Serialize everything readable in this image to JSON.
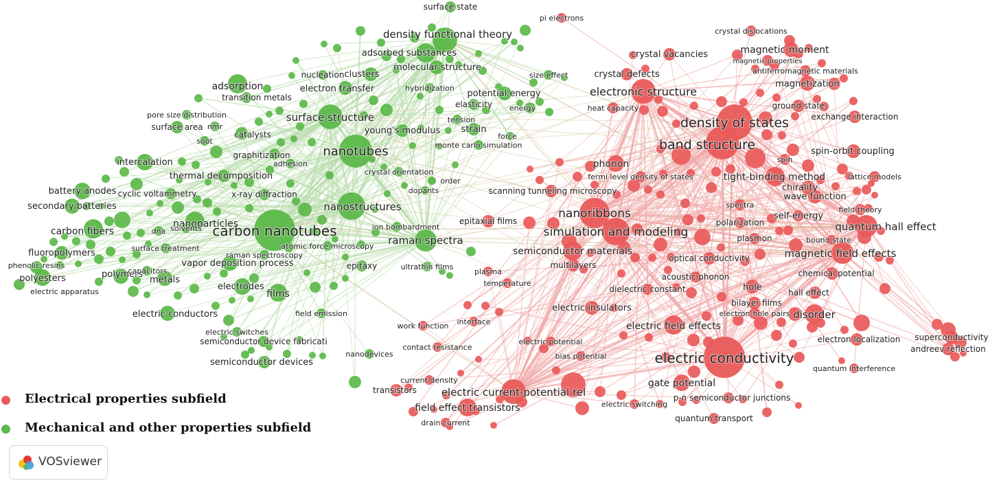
{
  "colors": {
    "electrical": "#e95a5a",
    "mechanical": "#5cb84a",
    "electrical_edge": "#f0aaaa",
    "mechanical_edge": "#b8ddac"
  },
  "legend": [
    {
      "label": "Electrical properties subfield",
      "color": "#e95a5a"
    },
    {
      "label": "Mechanical and other properties subfield",
      "color": "#5cb84a"
    }
  ],
  "brand": {
    "label": "VOSviewer",
    "icon": "vosviewer-logo-icon"
  },
  "nodes": [
    {
      "label": "carbon nanotubes",
      "c": "g",
      "w": 30,
      "lbl": 20
    },
    {
      "label": "nanotubes",
      "c": "g",
      "w": 24,
      "lbl": 18
    },
    {
      "label": "nanostructures",
      "c": "g",
      "w": 20,
      "lbl": 15
    },
    {
      "label": "surface structure",
      "c": "g",
      "w": 18,
      "lbl": 15
    },
    {
      "label": "density functional theory",
      "c": "g",
      "w": 18,
      "lbl": 15
    },
    {
      "label": "adsorbed substances",
      "c": "g",
      "w": 14,
      "lbl": 13
    },
    {
      "label": "raman spectra",
      "c": "g",
      "w": 16,
      "lbl": 15
    },
    {
      "label": "adsorption",
      "c": "g",
      "w": 14,
      "lbl": 14
    },
    {
      "label": "nanoparticles",
      "c": "g",
      "w": 14,
      "lbl": 14
    },
    {
      "label": "carbon fibers",
      "c": "g",
      "w": 14,
      "lbl": 14
    },
    {
      "label": "intercalation",
      "c": "g",
      "w": 12,
      "lbl": 13
    },
    {
      "label": "battery anodes",
      "c": "g",
      "w": 12,
      "lbl": 13
    },
    {
      "label": "secondary batteries",
      "c": "g",
      "w": 11,
      "lbl": 13
    },
    {
      "label": "fluoropolymers",
      "c": "g",
      "w": 10,
      "lbl": 13
    },
    {
      "label": "phenolic resins",
      "c": "g",
      "w": 9,
      "lbl": 11
    },
    {
      "label": "polyesters",
      "c": "g",
      "w": 12,
      "lbl": 13
    },
    {
      "label": "polymers",
      "c": "g",
      "w": 11,
      "lbl": 13
    },
    {
      "label": "electric apparatus",
      "c": "g",
      "w": 8,
      "lbl": 11
    },
    {
      "label": "metals",
      "c": "g",
      "w": 11,
      "lbl": 13
    },
    {
      "label": "films",
      "c": "g",
      "w": 13,
      "lbl": 14
    },
    {
      "label": "electrodes",
      "c": "g",
      "w": 12,
      "lbl": 13
    },
    {
      "label": "vapor deposition process",
      "c": "g",
      "w": 11,
      "lbl": 13
    },
    {
      "label": "electric conductors",
      "c": "g",
      "w": 11,
      "lbl": 13
    },
    {
      "label": "clusters",
      "c": "g",
      "w": 10,
      "lbl": 13
    },
    {
      "label": "molecular structure",
      "c": "g",
      "w": 10,
      "lbl": 13
    },
    {
      "label": "electron transfer",
      "c": "g",
      "w": 10,
      "lbl": 13
    },
    {
      "label": "potential energy",
      "c": "g",
      "w": 10,
      "lbl": 13
    },
    {
      "label": "young's modulus",
      "c": "g",
      "w": 9,
      "lbl": 13
    },
    {
      "label": "strain",
      "c": "g",
      "w": 9,
      "lbl": 13
    },
    {
      "label": "elasticity",
      "c": "g",
      "w": 8,
      "lbl": 12
    },
    {
      "label": "energy",
      "c": "g",
      "w": 8,
      "lbl": 11
    },
    {
      "label": "catalysts",
      "c": "g",
      "w": 9,
      "lbl": 12
    },
    {
      "label": "surface area",
      "c": "g",
      "w": 9,
      "lbl": 12
    },
    {
      "label": "thermal decomposition",
      "c": "g",
      "w": 9,
      "lbl": 13
    },
    {
      "label": "x-ray diffraction",
      "c": "g",
      "w": 8,
      "lbl": 12
    },
    {
      "label": "cyclic voltammetry",
      "c": "g",
      "w": 8,
      "lbl": 12
    },
    {
      "label": "graphitization",
      "c": "g",
      "w": 8,
      "lbl": 12
    },
    {
      "label": "transition metals",
      "c": "g",
      "w": 8,
      "lbl": 12
    },
    {
      "label": "pore size distribution",
      "c": "g",
      "w": 7,
      "lbl": 11
    },
    {
      "label": "nmr",
      "c": "g",
      "w": 7,
      "lbl": 11
    },
    {
      "label": "soot",
      "c": "g",
      "w": 7,
      "lbl": 11
    },
    {
      "label": "adhesion",
      "c": "g",
      "w": 7,
      "lbl": 11
    },
    {
      "label": "nucleation",
      "c": "g",
      "w": 7,
      "lbl": 12
    },
    {
      "label": "hybridization",
      "c": "g",
      "w": 7,
      "lbl": 11
    },
    {
      "label": "tension",
      "c": "g",
      "w": 7,
      "lbl": 11
    },
    {
      "label": "force",
      "c": "g",
      "w": 6,
      "lbl": 11
    },
    {
      "label": "monte carlo simulation",
      "c": "g",
      "w": 7,
      "lbl": 11
    },
    {
      "label": "crystal orientation",
      "c": "g",
      "w": 7,
      "lbl": 11
    },
    {
      "label": "order",
      "c": "g",
      "w": 6,
      "lbl": 11
    },
    {
      "label": "dopants",
      "c": "g",
      "w": 6,
      "lbl": 11
    },
    {
      "label": "ion bombardment",
      "c": "g",
      "w": 7,
      "lbl": 11
    },
    {
      "label": "atomic force microscopy",
      "c": "g",
      "w": 7,
      "lbl": 11
    },
    {
      "label": "raman spectroscopy",
      "c": "g",
      "w": 7,
      "lbl": 11
    },
    {
      "label": "epitaxy",
      "c": "g",
      "w": 8,
      "lbl": 12
    },
    {
      "label": "ultrathin films",
      "c": "g",
      "w": 7,
      "lbl": 11
    },
    {
      "label": "dna",
      "c": "g",
      "w": 7,
      "lbl": 11
    },
    {
      "label": "solvents",
      "c": "g",
      "w": 7,
      "lbl": 11
    },
    {
      "label": "surface treatment",
      "c": "g",
      "w": 7,
      "lbl": 11
    },
    {
      "label": "capacitors",
      "c": "g",
      "w": 7,
      "lbl": 11
    },
    {
      "label": "field emission",
      "c": "g",
      "w": 7,
      "lbl": 11
    },
    {
      "label": "electric switches",
      "c": "g",
      "w": 7,
      "lbl": 11
    },
    {
      "label": "semiconductor device fabricati",
      "c": "g",
      "w": 8,
      "lbl": 12
    },
    {
      "label": "semiconductor devices",
      "c": "g",
      "w": 9,
      "lbl": 13
    },
    {
      "label": "nanodevices",
      "c": "g",
      "w": 7,
      "lbl": 11
    },
    {
      "label": "surface state",
      "c": "g",
      "w": 8,
      "lbl": 12
    },
    {
      "label": "size effect",
      "c": "g",
      "w": 7,
      "lbl": 11
    },
    {
      "label": "density of states",
      "c": "r",
      "w": 26,
      "lbl": 19
    },
    {
      "label": "band structure",
      "c": "r",
      "w": 24,
      "lbl": 19
    },
    {
      "label": "electric conductivity",
      "c": "r",
      "w": 30,
      "lbl": 20
    },
    {
      "label": "nanoribbons",
      "c": "r",
      "w": 22,
      "lbl": 17
    },
    {
      "label": "simulation and modeling",
      "c": "r",
      "w": 20,
      "lbl": 17
    },
    {
      "label": "electronic structure",
      "c": "r",
      "w": 18,
      "lbl": 16
    },
    {
      "label": "electric current-potential rel",
      "c": "r",
      "w": 18,
      "lbl": 15
    },
    {
      "label": "quantum hall effect",
      "c": "r",
      "w": 16,
      "lbl": 15
    },
    {
      "label": "magnetic field effects",
      "c": "r",
      "w": 16,
      "lbl": 15
    },
    {
      "label": "tight-binding method",
      "c": "r",
      "w": 14,
      "lbl": 14
    },
    {
      "label": "semiconductor materials",
      "c": "r",
      "w": 14,
      "lbl": 14
    },
    {
      "label": "phonon",
      "c": "r",
      "w": 12,
      "lbl": 14
    },
    {
      "label": "electric field effects",
      "c": "r",
      "w": 14,
      "lbl": 14
    },
    {
      "label": "disorder",
      "c": "r",
      "w": 14,
      "lbl": 15
    },
    {
      "label": "field effect transistors",
      "c": "r",
      "w": 13,
      "lbl": 14
    },
    {
      "label": "gate potential",
      "c": "r",
      "w": 12,
      "lbl": 14
    },
    {
      "label": "magnetic moment",
      "c": "r",
      "w": 11,
      "lbl": 14
    },
    {
      "label": "magnetization",
      "c": "r",
      "w": 11,
      "lbl": 13
    },
    {
      "label": "spin-orbit coupling",
      "c": "r",
      "w": 10,
      "lbl": 13
    },
    {
      "label": "wave function",
      "c": "r",
      "w": 10,
      "lbl": 13
    },
    {
      "label": "chirality",
      "c": "r",
      "w": 10,
      "lbl": 13
    },
    {
      "label": "ground state",
      "c": "r",
      "w": 9,
      "lbl": 12
    },
    {
      "label": "exchange interaction",
      "c": "r",
      "w": 9,
      "lbl": 12
    },
    {
      "label": "crystal vacancies",
      "c": "r",
      "w": 9,
      "lbl": 13
    },
    {
      "label": "crystal defects",
      "c": "r",
      "w": 9,
      "lbl": 13
    },
    {
      "label": "crystal dislocations",
      "c": "r",
      "w": 8,
      "lbl": 11
    },
    {
      "label": "magnetic properties",
      "c": "r",
      "w": 8,
      "lbl": 10
    },
    {
      "label": "antiferromagnetic materials",
      "c": "r",
      "w": 8,
      "lbl": 11
    },
    {
      "label": "heat capacity",
      "c": "r",
      "w": 8,
      "lbl": 11
    },
    {
      "label": "spin",
      "c": "r",
      "w": 8,
      "lbl": 11
    },
    {
      "label": "lattice models",
      "c": "r",
      "w": 8,
      "lbl": 11
    },
    {
      "label": "fermi level density of states",
      "c": "r",
      "w": 8,
      "lbl": 11
    },
    {
      "label": "scanning tunneling microscopy",
      "c": "r",
      "w": 9,
      "lbl": 12
    },
    {
      "label": "field theory",
      "c": "r",
      "w": 8,
      "lbl": 11
    },
    {
      "label": "spectra",
      "c": "r",
      "w": 8,
      "lbl": 11
    },
    {
      "label": "polarization",
      "c": "r",
      "w": 8,
      "lbl": 12
    },
    {
      "label": "self-energy",
      "c": "r",
      "w": 8,
      "lbl": 13
    },
    {
      "label": "plasmon",
      "c": "r",
      "w": 8,
      "lbl": 12
    },
    {
      "label": "bound state",
      "c": "r",
      "w": 7,
      "lbl": 11
    },
    {
      "label": "epitaxial films",
      "c": "r",
      "w": 9,
      "lbl": 12
    },
    {
      "label": "multilayers",
      "c": "r",
      "w": 9,
      "lbl": 12
    },
    {
      "label": "optical conductivity",
      "c": "r",
      "w": 9,
      "lbl": 12
    },
    {
      "label": "acoustic phonon",
      "c": "r",
      "w": 8,
      "lbl": 12
    },
    {
      "label": "chemical potential",
      "c": "r",
      "w": 9,
      "lbl": 12
    },
    {
      "label": "dielectric constant",
      "c": "r",
      "w": 8,
      "lbl": 12
    },
    {
      "label": "hole",
      "c": "r",
      "w": 10,
      "lbl": 13
    },
    {
      "label": "hall effect",
      "c": "r",
      "w": 9,
      "lbl": 12
    },
    {
      "label": "plasma",
      "c": "r",
      "w": 7,
      "lbl": 11
    },
    {
      "label": "temperature",
      "c": "r",
      "w": 7,
      "lbl": 11
    },
    {
      "label": "bilayer films",
      "c": "r",
      "w": 9,
      "lbl": 12
    },
    {
      "label": "electron-hole pairs",
      "c": "r",
      "w": 8,
      "lbl": 11
    },
    {
      "label": "electric insulators",
      "c": "r",
      "w": 10,
      "lbl": 13
    },
    {
      "label": "electron localization",
      "c": "r",
      "w": 9,
      "lbl": 12
    },
    {
      "label": "superconductivity",
      "c": "r",
      "w": 10,
      "lbl": 12
    },
    {
      "label": "andreev reflection",
      "c": "r",
      "w": 9,
      "lbl": 12
    },
    {
      "label": "interface",
      "c": "r",
      "w": 7,
      "lbl": 11
    },
    {
      "label": "work function",
      "c": "r",
      "w": 7,
      "lbl": 11
    },
    {
      "label": "electric potential",
      "c": "r",
      "w": 7,
      "lbl": 11
    },
    {
      "label": "contact resistance",
      "c": "r",
      "w": 7,
      "lbl": 11
    },
    {
      "label": "bias potential",
      "c": "r",
      "w": 7,
      "lbl": 11
    },
    {
      "label": "quantum interference",
      "c": "r",
      "w": 7,
      "lbl": 11
    },
    {
      "label": "current density",
      "c": "r",
      "w": 7,
      "lbl": 11
    },
    {
      "label": "transistors",
      "c": "r",
      "w": 9,
      "lbl": 12
    },
    {
      "label": "p-n semiconductor junctions",
      "c": "r",
      "w": 8,
      "lbl": 12
    },
    {
      "label": "electric switching",
      "c": "r",
      "w": 7,
      "lbl": 11
    },
    {
      "label": "quantum transport",
      "c": "r",
      "w": 8,
      "lbl": 12
    },
    {
      "label": "drain current",
      "c": "r",
      "w": 7,
      "lbl": 11
    },
    {
      "label": "pi electrons",
      "c": "r",
      "w": 7,
      "lbl": 11
    }
  ]
}
